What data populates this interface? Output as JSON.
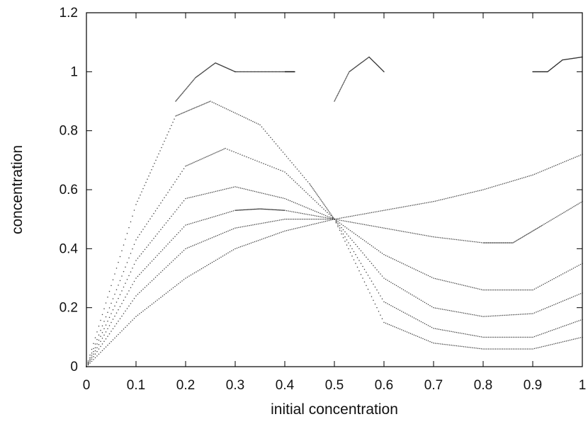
{
  "chart_data": {
    "type": "scatter",
    "title": "",
    "xlabel": "initial concentration",
    "ylabel": "concentration",
    "xlim": [
      0,
      1
    ],
    "ylim": [
      0,
      1.2
    ],
    "xticks": [
      "0",
      "0.1",
      "0.2",
      "0.3",
      "0.4",
      "0.5",
      "0.6",
      "0.7",
      "0.8",
      "0.9",
      "1"
    ],
    "yticks": [
      "0",
      "0.2",
      "0.4",
      "0.6",
      "0.8",
      "1",
      "1.2"
    ],
    "grid": false,
    "legend": "none",
    "point_color": "#000000",
    "series": [
      {
        "x": [
          0,
          0.1,
          0.2,
          0.3,
          0.4,
          0.5
        ],
        "y": [
          0,
          0.17,
          0.3,
          0.4,
          0.46,
          0.5
        ]
      },
      {
        "x": [
          0,
          0.1,
          0.2,
          0.3,
          0.4,
          0.5
        ],
        "y": [
          0,
          0.24,
          0.4,
          0.47,
          0.5,
          0.5
        ]
      },
      {
        "x": [
          0,
          0.1,
          0.2,
          0.3,
          0.35,
          0.4,
          0.5
        ],
        "y": [
          0,
          0.3,
          0.48,
          0.53,
          0.535,
          0.53,
          0.5
        ]
      },
      {
        "x": [
          0,
          0.1,
          0.2,
          0.3,
          0.4,
          0.5
        ],
        "y": [
          0,
          0.36,
          0.57,
          0.61,
          0.57,
          0.5
        ]
      },
      {
        "x": [
          0,
          0.1,
          0.2,
          0.28,
          0.4,
          0.5
        ],
        "y": [
          0,
          0.43,
          0.68,
          0.74,
          0.66,
          0.5
        ]
      },
      {
        "x": [
          0,
          0.1,
          0.18,
          0.25,
          0.35,
          0.45,
          0.5
        ],
        "y": [
          0,
          0.55,
          0.85,
          0.9,
          0.82,
          0.62,
          0.5
        ]
      },
      {
        "x": [
          0.5,
          0.6,
          0.7,
          0.8,
          0.9,
          1
        ],
        "y": [
          0.5,
          0.53,
          0.56,
          0.6,
          0.65,
          0.72
        ]
      },
      {
        "x": [
          0.5,
          0.6,
          0.7,
          0.8,
          0.86,
          0.92,
          1
        ],
        "y": [
          0.5,
          0.47,
          0.44,
          0.42,
          0.42,
          0.48,
          0.56
        ]
      },
      {
        "x": [
          0.5,
          0.6,
          0.7,
          0.8,
          0.9,
          1
        ],
        "y": [
          0.5,
          0.38,
          0.3,
          0.26,
          0.26,
          0.35
        ]
      },
      {
        "x": [
          0.5,
          0.6,
          0.7,
          0.8,
          0.9,
          1
        ],
        "y": [
          0.5,
          0.3,
          0.2,
          0.17,
          0.18,
          0.25
        ]
      },
      {
        "x": [
          0.5,
          0.6,
          0.7,
          0.8,
          0.9,
          1
        ],
        "y": [
          0.5,
          0.22,
          0.13,
          0.1,
          0.1,
          0.16
        ]
      },
      {
        "x": [
          0.5,
          0.6,
          0.7,
          0.8,
          0.9,
          1
        ],
        "y": [
          0.5,
          0.15,
          0.08,
          0.06,
          0.06,
          0.1
        ]
      },
      {
        "x": [
          0.18,
          0.22,
          0.26,
          0.3
        ],
        "y": [
          0.9,
          0.98,
          1.03,
          1.0
        ]
      },
      {
        "x": [
          0.3,
          0.35,
          0.4,
          0.42
        ],
        "y": [
          1.0,
          1.0,
          1.0,
          1.0
        ]
      },
      {
        "x": [
          0.5,
          0.53,
          0.57,
          0.6
        ],
        "y": [
          0.9,
          1.0,
          1.05,
          1.0
        ]
      },
      {
        "x": [
          0.9,
          0.93,
          0.96,
          1.0
        ],
        "y": [
          1.0,
          1.0,
          1.04,
          1.05
        ]
      }
    ]
  }
}
